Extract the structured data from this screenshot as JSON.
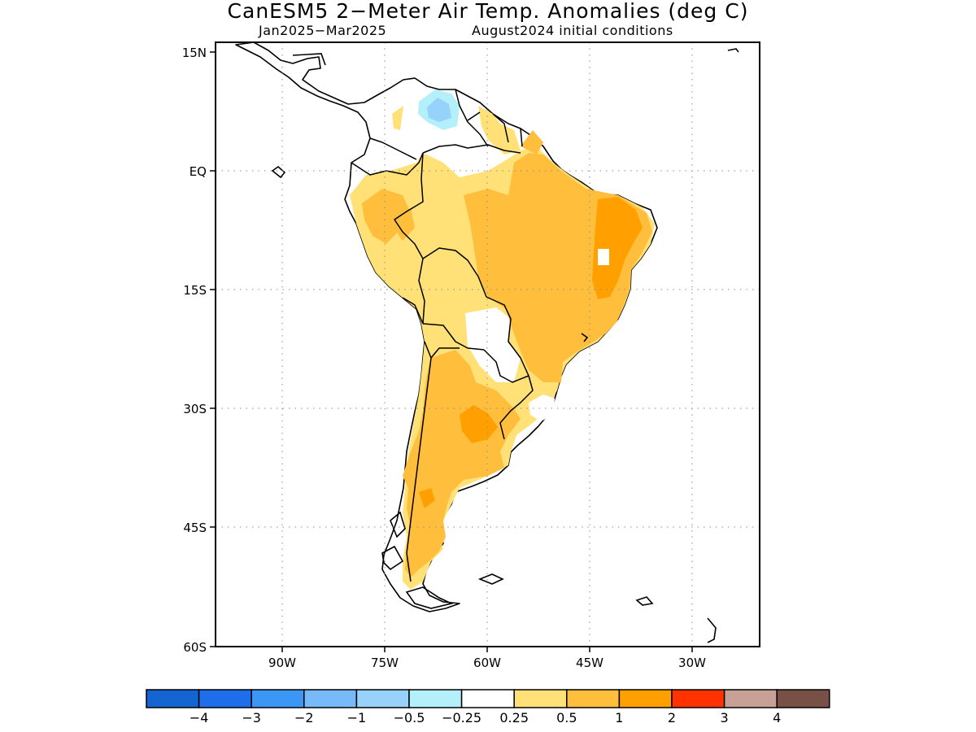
{
  "title": "CanESM5 2−Meter Air Temp. Anomalies (deg C)",
  "subtitle_left": "Jan2025−Mar2025",
  "subtitle_right": "August2024 initial conditions",
  "map": {
    "lat_ticks": [
      "15N",
      "EQ",
      "15S",
      "30S",
      "45S",
      "60S"
    ],
    "lon_ticks": [
      "90W",
      "75W",
      "60W",
      "45W",
      "30W"
    ],
    "grid": "dotted",
    "land_color": "#ffffff",
    "coast_color": "#000000"
  },
  "colorbar": {
    "colors": [
      "#1464d2",
      "#1e6eeb",
      "#3c96f5",
      "#78b9fa",
      "#96d2fa",
      "#b4f0fa",
      "#ffffff",
      "#ffe178",
      "#ffbe3c",
      "#ffa000",
      "#ff3200",
      "#c8a096",
      "#785046"
    ],
    "labels": [
      "−4",
      "−3",
      "−2",
      "−1",
      "−0.5",
      "−0.25",
      "0.25",
      "0.5",
      "1",
      "2",
      "3",
      "4"
    ]
  },
  "anomaly_regions": [
    {
      "name": "venezuela-cold-spot",
      "level": "-0.5 to -0.25",
      "color": "#b4f0fa"
    },
    {
      "name": "venezuela-cold-core",
      "level": "-1 to -0.5",
      "color": "#96d2fa"
    },
    {
      "name": "brazil-warm",
      "level": "0.5 to 1",
      "color": "#ffbe3c"
    },
    {
      "name": "northeast-brazil-hot",
      "level": "1 to 2",
      "color": "#ffa000"
    },
    {
      "name": "argentina-warm",
      "level": "0.5 to 1",
      "color": "#ffbe3c"
    },
    {
      "name": "central-argentina-hot",
      "level": "1 to 2",
      "color": "#ffa000"
    }
  ]
}
